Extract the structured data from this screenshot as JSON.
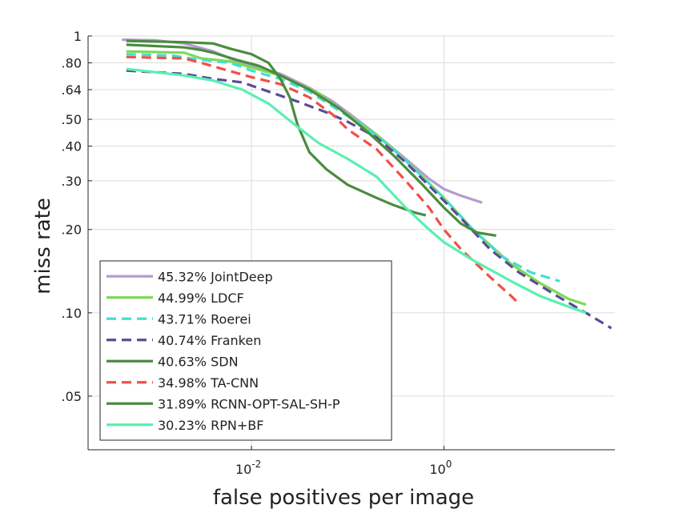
{
  "chart_data": {
    "type": "line",
    "xlabel": "false positives per image",
    "ylabel": "miss rate",
    "x_scale": "log",
    "y_scale": "log",
    "xlim": [
      0.0002,
      60
    ],
    "ylim": [
      0.032,
      1
    ],
    "x_ticks": [
      {
        "value": 0.01,
        "base": "10",
        "exp": "-2"
      },
      {
        "value": 1,
        "base": "10",
        "exp": "0"
      }
    ],
    "y_ticks": [
      {
        "value": 1,
        "label": "1"
      },
      {
        "value": 0.8,
        "label": ".80"
      },
      {
        "value": 0.64,
        "label": ".64"
      },
      {
        "value": 0.5,
        "label": ".50"
      },
      {
        "value": 0.4,
        "label": ".40"
      },
      {
        "value": 0.3,
        "label": ".30"
      },
      {
        "value": 0.2,
        "label": ".20"
      },
      {
        "value": 0.1,
        "label": ".10"
      },
      {
        "value": 0.05,
        "label": ".05"
      }
    ],
    "grid": true,
    "legend_position": "bottom-left",
    "series": [
      {
        "name": "45.32% JointDeep",
        "color": "#b49ccf",
        "dash": "solid",
        "points": [
          [
            0.00045,
            0.97
          ],
          [
            0.001,
            0.965
          ],
          [
            0.002,
            0.94
          ],
          [
            0.004,
            0.88
          ],
          [
            0.006,
            0.83
          ],
          [
            0.01,
            0.78
          ],
          [
            0.02,
            0.73
          ],
          [
            0.04,
            0.65
          ],
          [
            0.07,
            0.58
          ],
          [
            0.1,
            0.53
          ],
          [
            0.2,
            0.44
          ],
          [
            0.4,
            0.36
          ],
          [
            0.7,
            0.305
          ],
          [
            1.0,
            0.28
          ],
          [
            1.5,
            0.265
          ],
          [
            2.5,
            0.25
          ]
        ]
      },
      {
        "name": "44.99% LDCF",
        "color": "#7ed957",
        "dash": "solid",
        "points": [
          [
            0.0005,
            0.88
          ],
          [
            0.002,
            0.87
          ],
          [
            0.003,
            0.83
          ],
          [
            0.006,
            0.81
          ],
          [
            0.01,
            0.77
          ],
          [
            0.02,
            0.72
          ],
          [
            0.05,
            0.62
          ],
          [
            0.1,
            0.52
          ],
          [
            0.2,
            0.44
          ],
          [
            0.5,
            0.33
          ],
          [
            1.0,
            0.26
          ],
          [
            2,
            0.2
          ],
          [
            5,
            0.15
          ],
          [
            10,
            0.128
          ],
          [
            20,
            0.112
          ],
          [
            30,
            0.107
          ]
        ]
      },
      {
        "name": "43.71% Roerei",
        "color": "#40e0d0",
        "dash": "dashed",
        "points": [
          [
            0.0005,
            0.86
          ],
          [
            0.0015,
            0.85
          ],
          [
            0.003,
            0.82
          ],
          [
            0.006,
            0.8
          ],
          [
            0.01,
            0.75
          ],
          [
            0.02,
            0.7
          ],
          [
            0.04,
            0.63
          ],
          [
            0.08,
            0.54
          ],
          [
            0.15,
            0.47
          ],
          [
            0.3,
            0.39
          ],
          [
            0.6,
            0.31
          ],
          [
            1.0,
            0.26
          ],
          [
            2,
            0.2
          ],
          [
            4,
            0.16
          ],
          [
            8,
            0.14
          ],
          [
            16,
            0.13
          ]
        ]
      },
      {
        "name": "40.74% Franken",
        "color": "#5a4a9c",
        "dash": "dashed",
        "points": [
          [
            0.0005,
            0.75
          ],
          [
            0.002,
            0.73
          ],
          [
            0.004,
            0.7
          ],
          [
            0.008,
            0.68
          ],
          [
            0.015,
            0.63
          ],
          [
            0.03,
            0.58
          ],
          [
            0.06,
            0.53
          ],
          [
            0.1,
            0.49
          ],
          [
            0.2,
            0.43
          ],
          [
            0.4,
            0.35
          ],
          [
            0.8,
            0.275
          ],
          [
            1.5,
            0.22
          ],
          [
            3,
            0.17
          ],
          [
            6,
            0.14
          ],
          [
            15,
            0.115
          ],
          [
            30,
            0.1
          ],
          [
            55,
            0.088
          ]
        ]
      },
      {
        "name": "40.63% SDN",
        "color": "#4a8c3f",
        "dash": "solid",
        "points": [
          [
            0.0005,
            0.93
          ],
          [
            0.002,
            0.91
          ],
          [
            0.003,
            0.89
          ],
          [
            0.004,
            0.87
          ],
          [
            0.007,
            0.82
          ],
          [
            0.012,
            0.78
          ],
          [
            0.02,
            0.72
          ],
          [
            0.04,
            0.64
          ],
          [
            0.08,
            0.55
          ],
          [
            0.15,
            0.46
          ],
          [
            0.3,
            0.37
          ],
          [
            0.6,
            0.29
          ],
          [
            1.0,
            0.24
          ],
          [
            1.5,
            0.21
          ],
          [
            2.2,
            0.195
          ],
          [
            3.5,
            0.19
          ]
        ]
      },
      {
        "name": "34.98% TA-CNN",
        "color": "#f0504a",
        "dash": "dashed",
        "points": [
          [
            0.0005,
            0.84
          ],
          [
            0.002,
            0.83
          ],
          [
            0.003,
            0.8
          ],
          [
            0.005,
            0.76
          ],
          [
            0.01,
            0.71
          ],
          [
            0.02,
            0.67
          ],
          [
            0.04,
            0.6
          ],
          [
            0.07,
            0.52
          ],
          [
            0.1,
            0.46
          ],
          [
            0.2,
            0.39
          ],
          [
            0.4,
            0.3
          ],
          [
            0.7,
            0.24
          ],
          [
            1.0,
            0.2
          ],
          [
            1.5,
            0.17
          ],
          [
            3,
            0.135
          ],
          [
            5,
            0.115
          ],
          [
            6,
            0.108
          ]
        ]
      },
      {
        "name": "31.89% RCNN-OPT-SAL-SH-P",
        "color": "#4a8c3f",
        "dash": "solid",
        "points": [
          [
            0.0005,
            0.96
          ],
          [
            0.002,
            0.95
          ],
          [
            0.004,
            0.94
          ],
          [
            0.006,
            0.9
          ],
          [
            0.01,
            0.86
          ],
          [
            0.015,
            0.8
          ],
          [
            0.02,
            0.7
          ],
          [
            0.025,
            0.6
          ],
          [
            0.03,
            0.48
          ],
          [
            0.04,
            0.38
          ],
          [
            0.06,
            0.33
          ],
          [
            0.1,
            0.29
          ],
          [
            0.2,
            0.26
          ],
          [
            0.3,
            0.245
          ],
          [
            0.5,
            0.23
          ],
          [
            0.65,
            0.225
          ]
        ]
      },
      {
        "name": "30.23% RPN+BF",
        "color": "#5af0b0",
        "dash": "solid",
        "points": [
          [
            0.0005,
            0.76
          ],
          [
            0.001,
            0.74
          ],
          [
            0.002,
            0.72
          ],
          [
            0.004,
            0.69
          ],
          [
            0.008,
            0.64
          ],
          [
            0.015,
            0.57
          ],
          [
            0.03,
            0.47
          ],
          [
            0.05,
            0.41
          ],
          [
            0.1,
            0.36
          ],
          [
            0.2,
            0.31
          ],
          [
            0.4,
            0.24
          ],
          [
            0.7,
            0.2
          ],
          [
            1.0,
            0.18
          ],
          [
            2,
            0.155
          ],
          [
            5,
            0.13
          ],
          [
            10,
            0.115
          ],
          [
            20,
            0.105
          ],
          [
            30,
            0.1
          ]
        ]
      }
    ]
  }
}
